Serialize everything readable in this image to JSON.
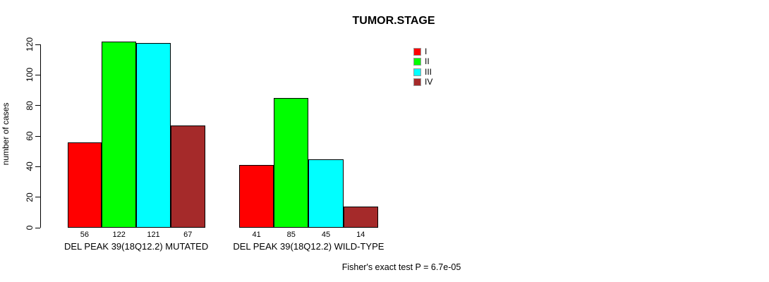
{
  "chart_data": {
    "type": "bar",
    "title": "TUMOR.STAGE",
    "ylabel": "number of cases",
    "xlabel": "",
    "ylim": [
      0,
      120
    ],
    "yticks": [
      0,
      20,
      40,
      60,
      80,
      100,
      120
    ],
    "grid": false,
    "legend_position": "top-right",
    "categories": [
      "DEL PEAK 39(18Q12.2) MUTATED",
      "DEL PEAK 39(18Q12.2) WILD-TYPE"
    ],
    "series": [
      {
        "name": "I",
        "color": "#ff0000",
        "values": [
          56,
          41
        ]
      },
      {
        "name": "II",
        "color": "#00ff00",
        "values": [
          122,
          85
        ]
      },
      {
        "name": "III",
        "color": "#00ffff",
        "values": [
          121,
          45
        ]
      },
      {
        "name": "IV",
        "color": "#a52a2a",
        "values": [
          67,
          14
        ]
      }
    ],
    "bar_value_labels_shown": true,
    "annotation": "Fisher's exact test P = 6.7e-05"
  }
}
